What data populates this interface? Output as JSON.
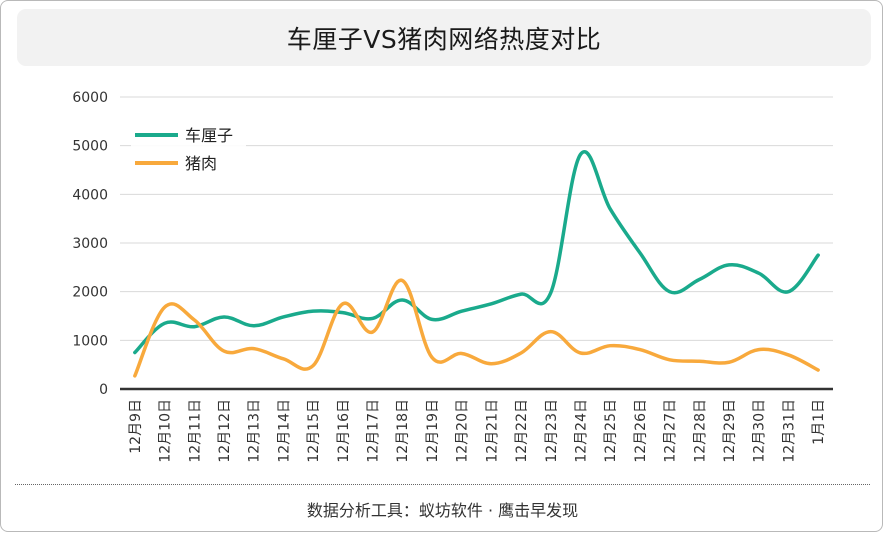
{
  "title": "车厘子VS猪肉网络热度对比",
  "footer": "数据分析工具：蚁坊软件 · 鹰击早发现",
  "chart_data": {
    "type": "line",
    "title": "车厘子VS猪肉网络热度对比",
    "categories": [
      "12月9日",
      "12月10日",
      "12月11日",
      "12月12日",
      "12月13日",
      "12月14日",
      "12月15日",
      "12月16日",
      "12月17日",
      "12月18日",
      "12月19日",
      "12月20日",
      "12月21日",
      "12月22日",
      "12月23日",
      "12月24日",
      "12月25日",
      "12月26日",
      "12月27日",
      "12月28日",
      "12月29日",
      "12月30日",
      "12月31日",
      "1月1日"
    ],
    "series": [
      {
        "name": "车厘子",
        "color": "#1aaa8c",
        "values": [
          750,
          1350,
          1280,
          1480,
          1300,
          1480,
          1600,
          1570,
          1450,
          1830,
          1430,
          1600,
          1750,
          1950,
          1980,
          4820,
          3700,
          2800,
          2000,
          2250,
          2550,
          2380,
          2000,
          2750
        ]
      },
      {
        "name": "猪肉",
        "color": "#f8a93c",
        "values": [
          270,
          1680,
          1420,
          780,
          830,
          620,
          480,
          1750,
          1170,
          2230,
          650,
          730,
          520,
          740,
          1180,
          740,
          890,
          810,
          600,
          570,
          550,
          810,
          700,
          390
        ]
      }
    ],
    "ylim": [
      0,
      6000
    ],
    "yticks": [
      0,
      1000,
      2000,
      3000,
      4000,
      5000,
      6000
    ],
    "grid": true,
    "legend": "top-left"
  }
}
